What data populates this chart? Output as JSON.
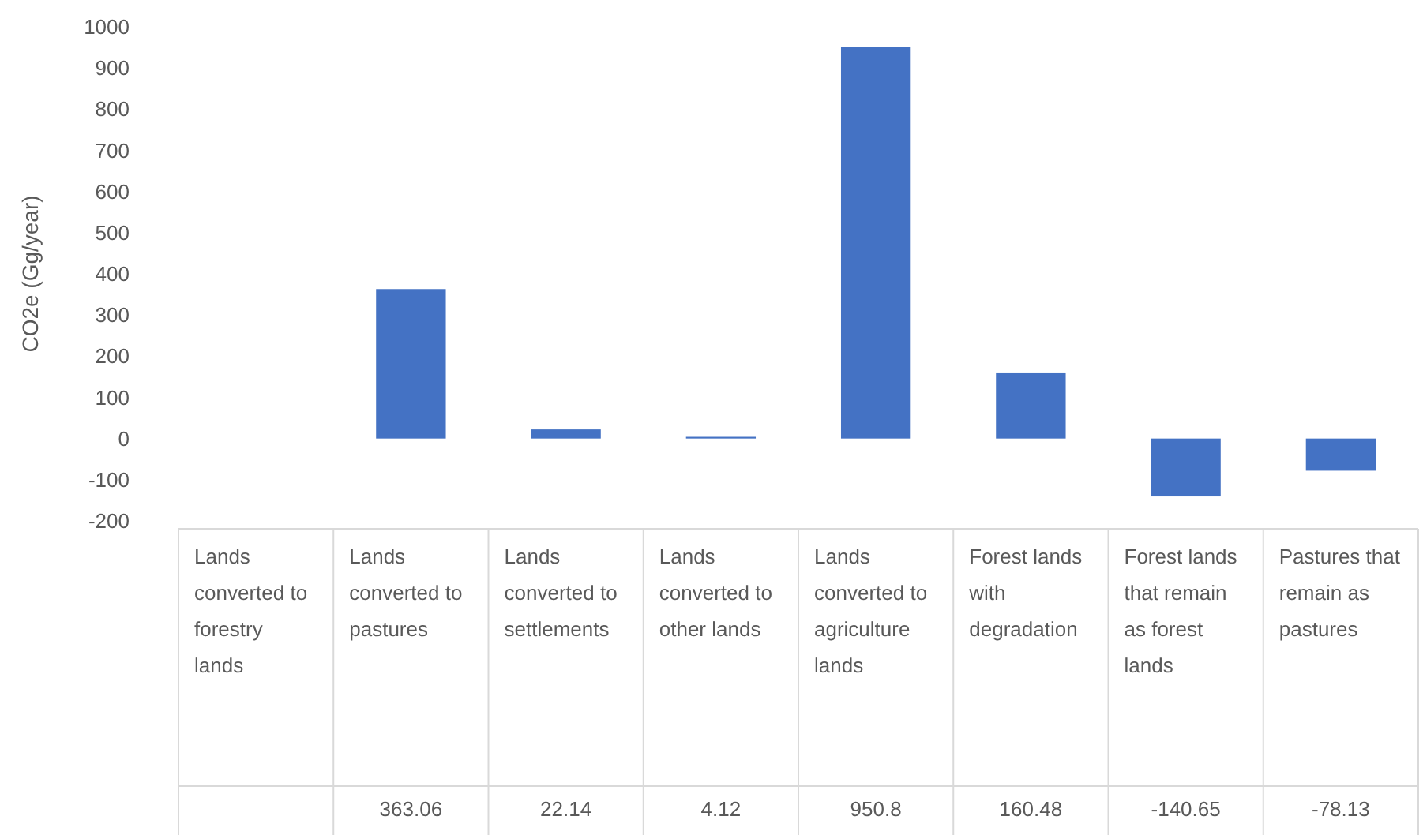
{
  "chart_data": {
    "type": "bar",
    "ylabel": "CO2e (Gg/year)",
    "categories": [
      "Lands converted to forestry lands",
      "Lands converted to pastures",
      "Lands converted to settlements",
      "Lands converted to other lands",
      "Lands converted to agriculture lands",
      "Forest lands with degradation",
      "Forest lands that remain as forest lands",
      "Pastures that remain as pastures"
    ],
    "values": [
      null,
      363.06,
      22.14,
      4.12,
      950.8,
      160.48,
      -140.65,
      -78.13
    ],
    "value_labels": [
      null,
      "363.06",
      "22.14",
      "4.12",
      "950.8",
      "160.48",
      "-140.65",
      "-78.13"
    ],
    "color": "#4472c4",
    "ylim": [
      -200,
      1000
    ],
    "yticks": [
      -200,
      -100,
      0,
      100,
      200,
      300,
      400,
      500,
      600,
      700,
      800,
      900,
      1000
    ],
    "grid": false
  }
}
